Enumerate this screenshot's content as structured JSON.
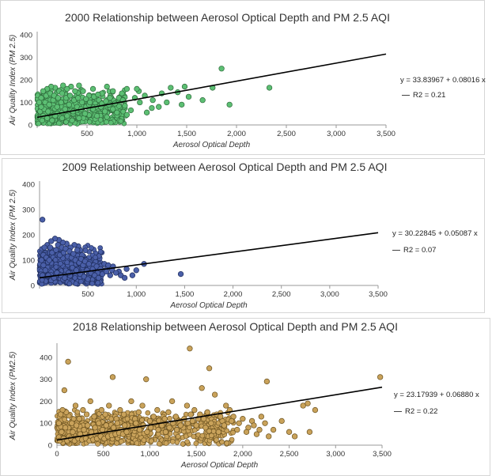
{
  "chart_data": [
    {
      "type": "scatter",
      "title": "2000 Relationship between Aerosol Optical Depth and PM 2.5 AQI",
      "xlabel": "Aerosol Optical Depth",
      "ylabel": "Air Quality Index (PM 2.5)",
      "xlim": [
        0,
        3500
      ],
      "ylim": [
        0,
        400
      ],
      "xticks": [
        "",
        "500",
        "1,000",
        "1,500",
        "2,000",
        "2,500",
        "3,000",
        "3,500"
      ],
      "yticks": [
        "0",
        "100",
        "200",
        "300",
        "400"
      ],
      "trendline": {
        "intercept": 33.83967,
        "slope": 0.08016
      },
      "equation": "y = 33.83967 + 0.08016 x",
      "r2": "R2 = 0.21",
      "marker_color": "#5cbf73",
      "marker_edge": "#2f6b3c",
      "grid": false,
      "points": [
        [
          1850,
          250
        ],
        [
          2330,
          165
        ],
        [
          1930,
          90
        ],
        [
          1760,
          165
        ],
        [
          1480,
          170
        ],
        [
          1410,
          145
        ],
        [
          1340,
          165
        ],
        [
          1250,
          140
        ],
        [
          1520,
          125
        ],
        [
          1660,
          110
        ],
        [
          1300,
          100
        ],
        [
          1160,
          110
        ],
        [
          1080,
          130
        ],
        [
          1030,
          100
        ],
        [
          1150,
          75
        ],
        [
          1220,
          80
        ],
        [
          1450,
          90
        ],
        [
          1020,
          150
        ],
        [
          980,
          120
        ],
        [
          900,
          160
        ],
        [
          850,
          140
        ],
        [
          760,
          150
        ],
        [
          820,
          120
        ],
        [
          700,
          170
        ],
        [
          650,
          140
        ],
        [
          620,
          110
        ],
        [
          560,
          160
        ],
        [
          520,
          130
        ],
        [
          460,
          150
        ],
        [
          420,
          175
        ],
        [
          380,
          150
        ],
        [
          340,
          170
        ],
        [
          300,
          160
        ],
        [
          260,
          175
        ],
        [
          220,
          150
        ],
        [
          180,
          165
        ],
        [
          140,
          170
        ],
        [
          100,
          160
        ],
        [
          60,
          150
        ],
        [
          40,
          120
        ],
        [
          80,
          100
        ],
        [
          120,
          90
        ],
        [
          160,
          110
        ],
        [
          200,
          80
        ],
        [
          240,
          100
        ],
        [
          280,
          70
        ],
        [
          320,
          90
        ],
        [
          360,
          60
        ],
        [
          400,
          80
        ],
        [
          440,
          70
        ],
        [
          480,
          50
        ],
        [
          520,
          90
        ],
        [
          560,
          70
        ],
        [
          600,
          40
        ],
        [
          640,
          80
        ],
        [
          680,
          60
        ],
        [
          720,
          90
        ],
        [
          760,
          70
        ],
        [
          800,
          55
        ],
        [
          880,
          85
        ],
        [
          940,
          65
        ],
        [
          60,
          40
        ],
        [
          100,
          30
        ],
        [
          150,
          20
        ],
        [
          200,
          50
        ],
        [
          250,
          30
        ],
        [
          300,
          40
        ],
        [
          350,
          20
        ],
        [
          30,
          60
        ],
        [
          70,
          70
        ],
        [
          110,
          60
        ],
        [
          90,
          130
        ],
        [
          130,
          140
        ],
        [
          170,
          130
        ],
        [
          210,
          120
        ],
        [
          250,
          140
        ],
        [
          290,
          120
        ],
        [
          330,
          130
        ],
        [
          370,
          110
        ],
        [
          410,
          120
        ],
        [
          450,
          100
        ],
        [
          490,
          115
        ],
        [
          530,
          100
        ],
        [
          570,
          125
        ],
        [
          610,
          135
        ],
        [
          650,
          95
        ],
        [
          690,
          105
        ],
        [
          730,
          120
        ],
        [
          40,
          80
        ],
        [
          20,
          100
        ],
        [
          50,
          20
        ],
        [
          180,
          40
        ],
        [
          420,
          30
        ],
        [
          700,
          35
        ],
        [
          900,
          45
        ],
        [
          1100,
          55
        ],
        [
          1000,
          160
        ],
        [
          780,
          95
        ],
        [
          860,
          110
        ]
      ]
    },
    {
      "type": "scatter",
      "title": "2009 Relationship between Aerosol Optical Depth and PM 2.5 AQI",
      "xlabel": "Aerosol Optical Depth",
      "ylabel": "Air Quality Index (PM 2.5)",
      "xlim": [
        0,
        3500
      ],
      "ylim": [
        0,
        400
      ],
      "xticks": [
        "",
        "500",
        "1,000",
        "1,500",
        "2,000",
        "2,500",
        "3,000",
        "3,500"
      ],
      "yticks": [
        "0",
        "100",
        "200",
        "300",
        "400"
      ],
      "trendline": {
        "intercept": 30.22845,
        "slope": 0.05087
      },
      "equation": "y = 30.22845 + 0.05087 x",
      "r2": "R2 = 0.07",
      "marker_color": "#4a5fa8",
      "marker_edge": "#1f2d5c",
      "grid": false,
      "points": [
        [
          30,
          260
        ],
        [
          1460,
          45
        ],
        [
          1080,
          85
        ],
        [
          1000,
          60
        ],
        [
          960,
          40
        ],
        [
          900,
          65
        ],
        [
          820,
          55
        ],
        [
          760,
          75
        ],
        [
          700,
          70
        ],
        [
          650,
          60
        ],
        [
          600,
          50
        ],
        [
          560,
          80
        ],
        [
          520,
          70
        ],
        [
          480,
          100
        ],
        [
          440,
          120
        ],
        [
          400,
          155
        ],
        [
          360,
          160
        ],
        [
          320,
          150
        ],
        [
          280,
          165
        ],
        [
          240,
          170
        ],
        [
          200,
          180
        ],
        [
          160,
          185
        ],
        [
          120,
          175
        ],
        [
          80,
          160
        ],
        [
          50,
          150
        ],
        [
          40,
          120
        ],
        [
          70,
          110
        ],
        [
          100,
          100
        ],
        [
          130,
          130
        ],
        [
          170,
          140
        ],
        [
          210,
          120
        ],
        [
          250,
          130
        ],
        [
          290,
          115
        ],
        [
          330,
          110
        ],
        [
          370,
          100
        ],
        [
          410,
          90
        ],
        [
          450,
          80
        ],
        [
          490,
          60
        ],
        [
          530,
          50
        ],
        [
          570,
          40
        ],
        [
          610,
          30
        ],
        [
          650,
          45
        ],
        [
          690,
          55
        ],
        [
          730,
          40
        ],
        [
          40,
          80
        ],
        [
          60,
          60
        ],
        [
          90,
          40
        ],
        [
          120,
          20
        ],
        [
          150,
          30
        ],
        [
          180,
          50
        ],
        [
          220,
          40
        ],
        [
          260,
          30
        ],
        [
          300,
          50
        ],
        [
          340,
          70
        ],
        [
          380,
          60
        ],
        [
          420,
          45
        ],
        [
          460,
          35
        ],
        [
          500,
          25
        ],
        [
          20,
          100
        ],
        [
          30,
          40
        ],
        [
          110,
          150
        ],
        [
          190,
          160
        ],
        [
          230,
          150
        ],
        [
          270,
          145
        ],
        [
          310,
          135
        ],
        [
          350,
          125
        ],
        [
          390,
          140
        ],
        [
          430,
          105
        ],
        [
          470,
          95
        ],
        [
          510,
          85
        ],
        [
          550,
          65
        ],
        [
          590,
          75
        ],
        [
          630,
          65
        ],
        [
          670,
          85
        ],
        [
          710,
          80
        ],
        [
          750,
          60
        ],
        [
          790,
          50
        ],
        [
          840,
          40
        ],
        [
          880,
          30
        ]
      ]
    },
    {
      "type": "scatter",
      "title": "2018 Relationship between Aerosol Optical Depth and PM 2.5 AQI",
      "xlabel": "Aerosol Optical Depth",
      "ylabel": "Air Quality Index (PM2.5)",
      "xlim": [
        0,
        3500
      ],
      "ylim": [
        0,
        450
      ],
      "xticks": [
        "0",
        "500",
        "1,000",
        "1,500",
        "2,000",
        "2,500",
        "3,000",
        "3,500"
      ],
      "yticks": [
        "0",
        "100",
        "200",
        "300",
        "400"
      ],
      "trendline": {
        "intercept": 23.17939,
        "slope": 0.0688
      },
      "equation": "y = 23.17939 + 0.06880 x",
      "r2": "R2 = 0.22",
      "marker_color": "#c9a25a",
      "marker_edge": "#6b5220",
      "grid": false,
      "points": [
        [
          1430,
          440
        ],
        [
          3480,
          310
        ],
        [
          2780,
          160
        ],
        [
          2720,
          60
        ],
        [
          2650,
          180
        ],
        [
          2500,
          60
        ],
        [
          2330,
          70
        ],
        [
          2280,
          40
        ],
        [
          2260,
          290
        ],
        [
          2200,
          130
        ],
        [
          2150,
          50
        ],
        [
          2100,
          110
        ],
        [
          2060,
          80
        ],
        [
          1960,
          100
        ],
        [
          1900,
          130
        ],
        [
          1860,
          160
        ],
        [
          1820,
          180
        ],
        [
          1780,
          110
        ],
        [
          1740,
          60
        ],
        [
          1700,
          230
        ],
        [
          1640,
          350
        ],
        [
          1600,
          80
        ],
        [
          1560,
          260
        ],
        [
          1520,
          120
        ],
        [
          1480,
          160
        ],
        [
          1440,
          140
        ],
        [
          1400,
          180
        ],
        [
          1360,
          80
        ],
        [
          1320,
          100
        ],
        [
          1280,
          130
        ],
        [
          1240,
          200
        ],
        [
          1200,
          150
        ],
        [
          1160,
          120
        ],
        [
          1120,
          90
        ],
        [
          1080,
          160
        ],
        [
          1040,
          130
        ],
        [
          1000,
          110
        ],
        [
          960,
          300
        ],
        [
          920,
          180
        ],
        [
          880,
          150
        ],
        [
          840,
          120
        ],
        [
          800,
          200
        ],
        [
          760,
          90
        ],
        [
          720,
          140
        ],
        [
          680,
          160
        ],
        [
          640,
          120
        ],
        [
          600,
          310
        ],
        [
          560,
          180
        ],
        [
          520,
          140
        ],
        [
          480,
          160
        ],
        [
          440,
          110
        ],
        [
          400,
          130
        ],
        [
          360,
          200
        ],
        [
          320,
          140
        ],
        [
          280,
          160
        ],
        [
          240,
          120
        ],
        [
          200,
          180
        ],
        [
          160,
          100
        ],
        [
          120,
          380
        ],
        [
          100,
          150
        ],
        [
          80,
          250
        ],
        [
          60,
          160
        ],
        [
          40,
          140
        ],
        [
          20,
          100
        ],
        [
          50,
          60
        ],
        [
          90,
          80
        ],
        [
          130,
          40
        ],
        [
          170,
          60
        ],
        [
          210,
          90
        ],
        [
          250,
          50
        ],
        [
          290,
          70
        ],
        [
          330,
          90
        ],
        [
          370,
          60
        ],
        [
          410,
          80
        ],
        [
          450,
          100
        ],
        [
          490,
          70
        ],
        [
          530,
          90
        ],
        [
          570,
          60
        ],
        [
          610,
          80
        ],
        [
          650,
          100
        ],
        [
          690,
          70
        ],
        [
          730,
          90
        ],
        [
          770,
          60
        ],
        [
          810,
          80
        ],
        [
          850,
          100
        ],
        [
          890,
          70
        ],
        [
          930,
          90
        ],
        [
          970,
          60
        ],
        [
          1010,
          80
        ],
        [
          1050,
          100
        ],
        [
          1090,
          70
        ],
        [
          1130,
          90
        ],
        [
          1170,
          60
        ],
        [
          1210,
          80
        ],
        [
          1250,
          100
        ],
        [
          1290,
          70
        ],
        [
          1330,
          90
        ],
        [
          1370,
          120
        ],
        [
          1410,
          100
        ],
        [
          1460,
          110
        ],
        [
          1500,
          90
        ],
        [
          1540,
          140
        ],
        [
          1580,
          120
        ],
        [
          1620,
          150
        ],
        [
          1660,
          100
        ],
        [
          1720,
          140
        ],
        [
          1760,
          130
        ],
        [
          1800,
          90
        ],
        [
          1880,
          110
        ],
        [
          1940,
          70
        ],
        [
          2000,
          120
        ],
        [
          2040,
          60
        ],
        [
          2120,
          90
        ],
        [
          2180,
          70
        ],
        [
          2240,
          100
        ],
        [
          2420,
          110
        ],
        [
          2560,
          40
        ],
        [
          2700,
          190
        ],
        [
          30,
          20
        ],
        [
          70,
          30
        ],
        [
          110,
          20
        ],
        [
          150,
          30
        ],
        [
          190,
          20
        ],
        [
          230,
          30
        ],
        [
          270,
          25
        ],
        [
          310,
          30
        ],
        [
          350,
          20
        ],
        [
          390,
          25
        ],
        [
          430,
          30
        ],
        [
          470,
          40
        ],
        [
          510,
          30
        ],
        [
          550,
          40
        ],
        [
          590,
          45
        ],
        [
          630,
          50
        ],
        [
          670,
          55
        ],
        [
          710,
          50
        ],
        [
          750,
          60
        ]
      ]
    }
  ]
}
